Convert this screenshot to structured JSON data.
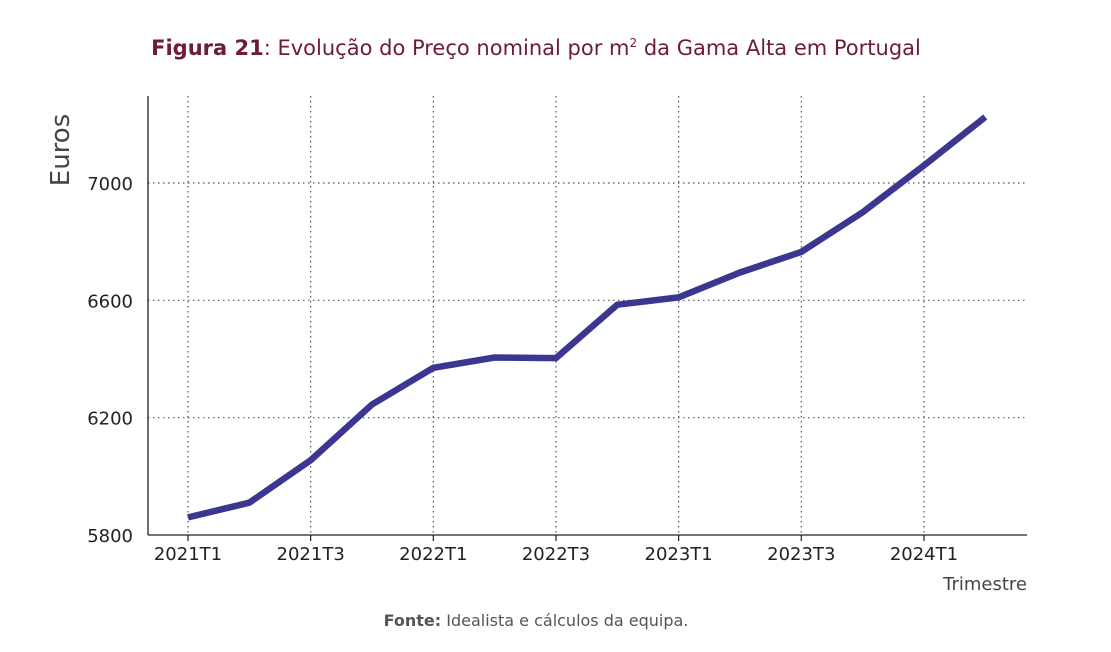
{
  "figure_label": "Figura 21",
  "title_main": ": Evolução do Preço nominal por m",
  "title_sup": "2",
  "title_tail": " da Gama Alta em Portugal",
  "source_label": "Fonte:",
  "source_text": " Idealista e cálculos da equipa.",
  "colors": {
    "line": "#3b3791",
    "title": "#6d1a3c",
    "grid": "#555555",
    "axis": "#222222"
  },
  "chart_data": {
    "type": "line",
    "xlabel": "Trimestre",
    "ylabel": "Euros",
    "ylim": [
      5800,
      7250
    ],
    "yticks": [
      5800,
      6200,
      6600,
      7000
    ],
    "x": [
      "2021T1",
      "2021T2",
      "2021T3",
      "2021T4",
      "2022T1",
      "2022T2",
      "2022T3",
      "2022T4",
      "2023T1",
      "2023T2",
      "2023T3",
      "2023T4",
      "2024T1",
      "2024T2"
    ],
    "xtick_labels": [
      "2021T1",
      "2021T3",
      "2022T1",
      "2022T3",
      "2023T1",
      "2023T3",
      "2024T1"
    ],
    "series": [
      {
        "values": [
          5860,
          5910,
          6055,
          6245,
          6370,
          6405,
          6403,
          6585,
          6610,
          6695,
          6765,
          6900,
          7060,
          7225
        ]
      }
    ],
    "grid": true
  }
}
